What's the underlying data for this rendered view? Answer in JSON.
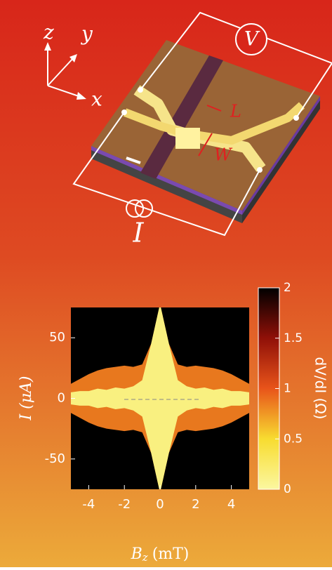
{
  "labels": {
    "z": "z",
    "y": "y",
    "x": "x",
    "voltage": "V",
    "length": "L",
    "width": "W",
    "current": "I"
  },
  "chart_data": {
    "type": "heatmap",
    "ylabel": "I (μA)",
    "xlabel": {
      "symbol": "B",
      "subscript": "z",
      "unit": "(mT)"
    },
    "colorbar_label": "dV/dI (Ω)",
    "xlim": [
      -5,
      5
    ],
    "xticks": [
      -4,
      -2,
      0,
      2,
      4
    ],
    "ylim": [
      -75,
      75
    ],
    "yticks": [
      50,
      0,
      -50
    ],
    "zlim": [
      0,
      2
    ],
    "zticks": [
      0,
      0.5,
      1,
      1.5,
      2
    ],
    "background": "#000000",
    "x": [
      -5,
      -4.5,
      -4,
      -3.5,
      -3,
      -2.5,
      -2,
      -1.5,
      -1,
      -0.5,
      0,
      0.5,
      1,
      1.5,
      2,
      2.5,
      3,
      3.5,
      4,
      4.5,
      5
    ],
    "series": [
      {
        "color": "#e8781e",
        "values": [
          12,
          16,
          20,
          23,
          25,
          26,
          27,
          26,
          28,
          45,
          78,
          45,
          28,
          26,
          27,
          26,
          25,
          23,
          20,
          16,
          12
        ]
      },
      {
        "color": "#f9f080",
        "values": [
          5,
          6,
          6,
          8,
          7,
          9,
          8,
          10,
          15,
          45,
          78,
          45,
          15,
          10,
          8,
          9,
          7,
          8,
          6,
          6,
          5
        ]
      }
    ]
  }
}
